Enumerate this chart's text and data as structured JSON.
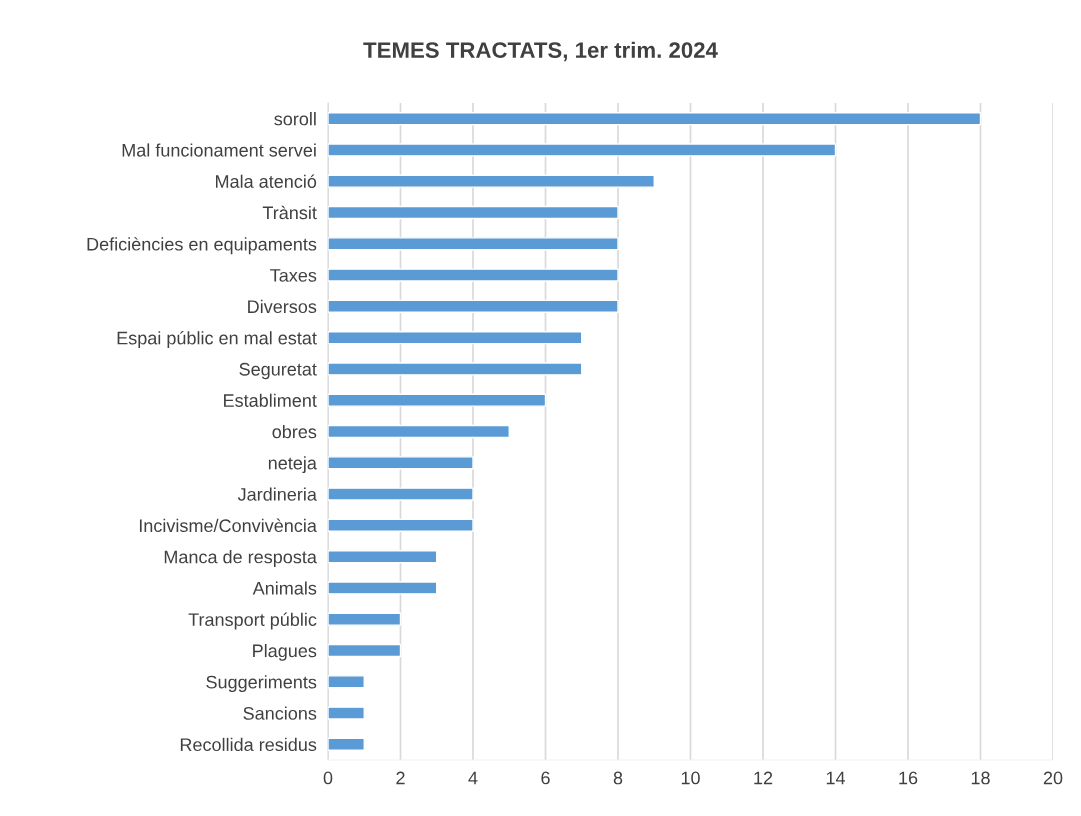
{
  "chart_data": {
    "type": "bar",
    "orientation": "horizontal",
    "title": "TEMES TRACTATS, 1er trim. 2024",
    "categories": [
      "soroll",
      "Mal funcionament servei",
      "Mala atenció",
      "Trànsit",
      "Deficiències en equipaments",
      "Taxes",
      "Diversos",
      "Espai públic en mal estat",
      "Seguretat",
      "Establiment",
      "obres",
      "neteja",
      "Jardineria",
      "Incivisme/Convivència",
      "Manca de resposta",
      "Animals",
      "Transport públic",
      "Plagues",
      "Suggeriments",
      "Sancions",
      "Recollida residus"
    ],
    "values": [
      18,
      14,
      9,
      8,
      8,
      8,
      8,
      7,
      7,
      6,
      5,
      4,
      4,
      4,
      3,
      3,
      2,
      2,
      1,
      1,
      1
    ],
    "color": "#5b9bd5",
    "xlim": [
      0,
      20
    ],
    "xticks": [
      0,
      2,
      4,
      6,
      8,
      10,
      12,
      14,
      16,
      18,
      20
    ],
    "grid": "x"
  }
}
